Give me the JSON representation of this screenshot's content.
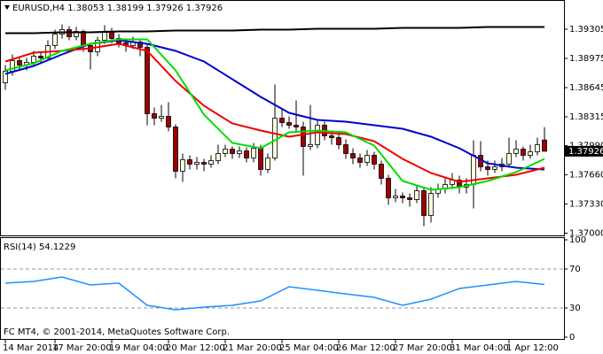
{
  "chart_data": [
    {
      "type": "candlestick",
      "title": "EURUSD,H4  1.38053 1.38199 1.37926 1.37926",
      "up_color": "#ffffe0",
      "down_color": "#a00000",
      "candles": [
        [
          1.387,
          1.389,
          1.3862,
          1.3883
        ],
        [
          1.3883,
          1.3902,
          1.3878,
          1.3895
        ],
        [
          1.3895,
          1.39,
          1.3885,
          1.389
        ],
        [
          1.389,
          1.3898,
          1.3884,
          1.3893
        ],
        [
          1.3893,
          1.3906,
          1.3888,
          1.39
        ],
        [
          1.39,
          1.3905,
          1.3892,
          1.3898
        ],
        [
          1.3898,
          1.3918,
          1.3895,
          1.3912
        ],
        [
          1.3912,
          1.393,
          1.3908,
          1.3925
        ],
        [
          1.3925,
          1.3936,
          1.392,
          1.393
        ],
        [
          1.393,
          1.3934,
          1.3918,
          1.3922
        ],
        [
          1.3922,
          1.3933,
          1.3918,
          1.3928
        ],
        [
          1.3928,
          1.393,
          1.3905,
          1.3912
        ],
        [
          1.3912,
          1.3915,
          1.3885,
          1.3905
        ],
        [
          1.3905,
          1.3922,
          1.39,
          1.3918
        ],
        [
          1.3918,
          1.3935,
          1.3914,
          1.3928
        ],
        [
          1.3928,
          1.3932,
          1.3915,
          1.392
        ],
        [
          1.392,
          1.3925,
          1.391,
          1.3915
        ],
        [
          1.3915,
          1.392,
          1.3905,
          1.3912
        ],
        [
          1.3912,
          1.3922,
          1.3908,
          1.3916
        ],
        [
          1.3916,
          1.392,
          1.39,
          1.391
        ],
        [
          1.391,
          1.3914,
          1.3822,
          1.3835
        ],
        [
          1.3835,
          1.3842,
          1.3822,
          1.383
        ],
        [
          1.383,
          1.3845,
          1.3826,
          1.3832
        ],
        [
          1.3832,
          1.3848,
          1.3815,
          1.382
        ],
        [
          1.382,
          1.3823,
          1.3762,
          1.377
        ],
        [
          1.377,
          1.379,
          1.3758,
          1.3783
        ],
        [
          1.3783,
          1.3788,
          1.3772,
          1.3778
        ],
        [
          1.3778,
          1.3786,
          1.3772,
          1.378
        ],
        [
          1.378,
          1.3784,
          1.377,
          1.3778
        ],
        [
          1.3778,
          1.3788,
          1.3774,
          1.3782
        ],
        [
          1.3782,
          1.38,
          1.3778,
          1.379
        ],
        [
          1.379,
          1.38,
          1.3786,
          1.3795
        ],
        [
          1.3795,
          1.3798,
          1.3784,
          1.379
        ],
        [
          1.379,
          1.3798,
          1.3785,
          1.3793
        ],
        [
          1.3793,
          1.3797,
          1.378,
          1.3785
        ],
        [
          1.3785,
          1.3802,
          1.378,
          1.3796
        ],
        [
          1.3796,
          1.38,
          1.3765,
          1.3772
        ],
        [
          1.3772,
          1.379,
          1.3768,
          1.3785
        ],
        [
          1.3785,
          1.3868,
          1.3782,
          1.383
        ],
        [
          1.383,
          1.384,
          1.382,
          1.3825
        ],
        [
          1.3825,
          1.3832,
          1.3818,
          1.3822
        ],
        [
          1.3822,
          1.385,
          1.3815,
          1.382
        ],
        [
          1.382,
          1.3826,
          1.3765,
          1.3798
        ],
        [
          1.3798,
          1.3845,
          1.3794,
          1.38
        ],
        [
          1.38,
          1.3828,
          1.3796,
          1.3822
        ],
        [
          1.3822,
          1.3826,
          1.3805,
          1.381
        ],
        [
          1.381,
          1.3815,
          1.38,
          1.3808
        ],
        [
          1.3808,
          1.3812,
          1.3795,
          1.38
        ],
        [
          1.38,
          1.3806,
          1.3784,
          1.379
        ],
        [
          1.379,
          1.3796,
          1.3778,
          1.3785
        ],
        [
          1.3785,
          1.379,
          1.3774,
          1.378
        ],
        [
          1.378,
          1.3794,
          1.3776,
          1.3788
        ],
        [
          1.3788,
          1.3792,
          1.3772,
          1.3778
        ],
        [
          1.3778,
          1.3782,
          1.3755,
          1.3762
        ],
        [
          1.3762,
          1.3766,
          1.3732,
          1.374
        ],
        [
          1.374,
          1.375,
          1.3735,
          1.3742
        ],
        [
          1.3742,
          1.3746,
          1.3734,
          1.374
        ],
        [
          1.374,
          1.3745,
          1.373,
          1.3738
        ],
        [
          1.3738,
          1.3755,
          1.3734,
          1.3748
        ],
        [
          1.3748,
          1.3752,
          1.3708,
          1.372
        ],
        [
          1.372,
          1.3752,
          1.3712,
          1.3745
        ],
        [
          1.3745,
          1.3756,
          1.374,
          1.375
        ],
        [
          1.375,
          1.3762,
          1.3745,
          1.3755
        ],
        [
          1.3755,
          1.3768,
          1.375,
          1.376
        ],
        [
          1.376,
          1.3765,
          1.3745,
          1.3752
        ],
        [
          1.3752,
          1.3762,
          1.3745,
          1.3755
        ],
        [
          1.3755,
          1.3805,
          1.3728,
          1.3788
        ],
        [
          1.3788,
          1.3804,
          1.377,
          1.3775
        ],
        [
          1.3775,
          1.3782,
          1.3765,
          1.3772
        ],
        [
          1.3772,
          1.3782,
          1.3768,
          1.3775
        ],
        [
          1.3775,
          1.3785,
          1.377,
          1.3778
        ],
        [
          1.3778,
          1.3808,
          1.3774,
          1.379
        ],
        [
          1.379,
          1.3805,
          1.3786,
          1.3795
        ],
        [
          1.3795,
          1.3798,
          1.3782,
          1.3788
        ],
        [
          1.3788,
          1.38,
          1.3784,
          1.3792
        ],
        [
          1.3792,
          1.3808,
          1.3788,
          1.38
        ],
        [
          1.38053,
          1.38199,
          1.37926,
          1.37926
        ]
      ],
      "x": [
        0,
        4,
        8,
        12,
        16,
        20,
        24,
        28,
        32,
        36,
        40,
        44,
        48,
        52,
        56,
        60,
        64,
        68,
        72,
        76
      ],
      "series": [
        {
          "color": "#000000",
          "values": [
            1.3926,
            1.3926,
            1.3927,
            1.3927,
            1.3928,
            1.3928,
            1.3929,
            1.3929,
            1.3929,
            1.393,
            1.393,
            1.3931,
            1.3931,
            1.3931,
            1.3932,
            1.3932,
            1.3932,
            1.3933,
            1.3933,
            1.3933
          ]
        },
        {
          "color": "#0000cc",
          "values": [
            1.388,
            1.3889,
            1.3902,
            1.3914,
            1.3918,
            1.3914,
            1.3906,
            1.3894,
            1.3874,
            1.3854,
            1.3836,
            1.3828,
            1.3826,
            1.3822,
            1.3818,
            1.3809,
            1.3796,
            1.3779,
            1.3774,
            1.3772
          ]
        },
        {
          "color": "#ee0000",
          "values": [
            1.3894,
            1.3904,
            1.3906,
            1.3909,
            1.3914,
            1.3906,
            1.3872,
            1.3844,
            1.3824,
            1.3816,
            1.3809,
            1.3814,
            1.3812,
            1.3804,
            1.3784,
            1.3768,
            1.3758,
            1.3762,
            1.3766,
            1.3774
          ]
        },
        {
          "color": "#00dd00",
          "values": [
            1.3884,
            1.3892,
            1.3906,
            1.3914,
            1.3919,
            1.3919,
            1.3884,
            1.3834,
            1.3802,
            1.3796,
            1.3814,
            1.3816,
            1.3814,
            1.3799,
            1.3759,
            1.3749,
            1.3752,
            1.3759,
            1.3769,
            1.3784
          ]
        }
      ],
      "xlim": [
        -0.75,
        78.75
      ],
      "xticks": [
        {
          "value": 0,
          "label": "14 Mar 2014"
        },
        {
          "value": 7,
          "label": "17 Mar 20:00"
        },
        {
          "value": 15,
          "label": "19 Mar 04:00"
        },
        {
          "value": 23,
          "label": "20 Mar 12:00"
        },
        {
          "value": 31,
          "label": "21 Mar 20:00"
        },
        {
          "value": 39,
          "label": "25 Mar 04:00"
        },
        {
          "value": 47,
          "label": "26 Mar 12:00"
        },
        {
          "value": 55,
          "label": "27 Mar 20:00"
        },
        {
          "value": 63,
          "label": "31 Mar 04:00"
        },
        {
          "value": 71,
          "label": "1 Apr 12:00"
        }
      ],
      "ylim": [
        1.36975,
        1.39635
      ],
      "yticks": [
        1.39305,
        1.38975,
        1.38645,
        1.38315,
        {
          "value": 1.3799,
          "label": "1.37990"
        },
        {
          "value": 1.3766,
          "label": "1.37660"
        },
        {
          "value": 1.3733,
          "label": "1.37330"
        },
        {
          "value": 1.37,
          "label": "1.37000"
        }
      ],
      "last_price": 1.37926
    },
    {
      "type": "line",
      "title": "RSI(14) 54.1229",
      "footer": "FC MT4, © 2001-2014, MetaQuotes Software Corp.",
      "color": "#1e90ff",
      "x": [
        0,
        4,
        8,
        12,
        16,
        20,
        24,
        28,
        32,
        36,
        40,
        44,
        48,
        52,
        56,
        60,
        64,
        68,
        72,
        76
      ],
      "values": [
        55.5,
        57.3,
        61.8,
        53.6,
        55.5,
        32.7,
        28.2,
        30.9,
        32.7,
        37.3,
        51.8,
        48.2,
        44.5,
        40.9,
        32.7,
        39.1,
        50.0,
        53.6,
        57.3,
        54.1
      ],
      "ylim": [
        0,
        100
      ],
      "yticks": [
        100,
        70,
        30,
        0
      ],
      "levels": [
        70,
        30
      ]
    }
  ]
}
